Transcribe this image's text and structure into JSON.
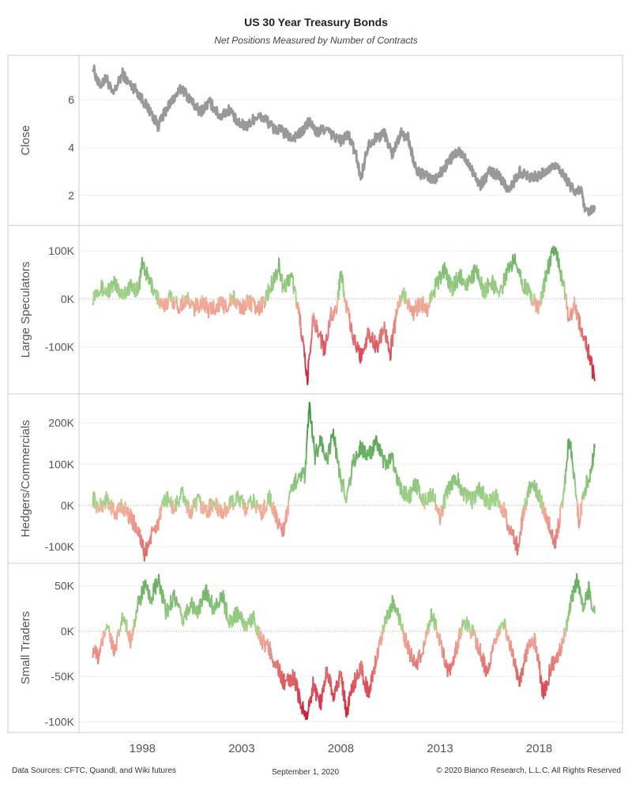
{
  "header": {
    "title": "US 30 Year Treasury Bonds",
    "subtitle": "Net Positions Measured by Number of Contracts"
  },
  "footer": {
    "sources": "Data Sources: CFTC, Quandl, and Wiki futures",
    "date": "September 1, 2020",
    "copyright": "© 2020 Bianco Research, L.L.C. All Rights Reserved"
  },
  "chart_data": {
    "type": "line",
    "x_axis": {
      "ticks": [
        "1998",
        "2003",
        "2008",
        "2013",
        "2018"
      ],
      "tick_values": [
        1998,
        2003,
        2008,
        2013,
        2018
      ],
      "range": [
        1994.8,
        2022.2
      ]
    },
    "colors": {
      "close": "#999999",
      "positive_dark": "#2e8b3a",
      "positive_light": "#a8d58f",
      "negative_light": "#f4b49e",
      "negative_dark": "#c8102e"
    },
    "panels": [
      {
        "ylabel": "Close",
        "ylim": [
          1,
          7.6
        ],
        "yticks": [
          2,
          4,
          6
        ],
        "ytick_labels": [
          "2",
          "4",
          "6"
        ],
        "color_mode": "gray",
        "points": [
          [
            1995.5,
            7.4
          ],
          [
            1995.8,
            6.6
          ],
          [
            1996.2,
            6.9
          ],
          [
            1996.5,
            6.2
          ],
          [
            1997.0,
            7.1
          ],
          [
            1997.3,
            6.7
          ],
          [
            1997.7,
            6.4
          ],
          [
            1998.0,
            6.0
          ],
          [
            1998.4,
            5.5
          ],
          [
            1998.8,
            4.9
          ],
          [
            1999.2,
            5.6
          ],
          [
            1999.6,
            6.1
          ],
          [
            2000.0,
            6.5
          ],
          [
            2000.4,
            6.0
          ],
          [
            2000.9,
            5.5
          ],
          [
            2001.4,
            5.9
          ],
          [
            2001.9,
            5.3
          ],
          [
            2002.4,
            5.6
          ],
          [
            2002.8,
            5.0
          ],
          [
            2003.3,
            4.9
          ],
          [
            2003.7,
            5.3
          ],
          [
            2004.2,
            5.2
          ],
          [
            2004.6,
            4.8
          ],
          [
            2005.0,
            4.7
          ],
          [
            2005.5,
            4.4
          ],
          [
            2006.0,
            4.6
          ],
          [
            2006.4,
            5.1
          ],
          [
            2006.8,
            4.6
          ],
          [
            2007.2,
            4.8
          ],
          [
            2007.6,
            4.5
          ],
          [
            2008.0,
            4.3
          ],
          [
            2008.4,
            4.5
          ],
          [
            2008.8,
            3.6
          ],
          [
            2009.0,
            2.7
          ],
          [
            2009.4,
            4.2
          ],
          [
            2009.8,
            4.4
          ],
          [
            2010.2,
            4.6
          ],
          [
            2010.6,
            3.7
          ],
          [
            2011.0,
            4.6
          ],
          [
            2011.4,
            4.4
          ],
          [
            2011.8,
            3.0
          ],
          [
            2012.3,
            2.8
          ],
          [
            2012.7,
            2.6
          ],
          [
            2013.1,
            3.0
          ],
          [
            2013.6,
            3.6
          ],
          [
            2014.0,
            3.8
          ],
          [
            2014.5,
            3.3
          ],
          [
            2015.0,
            2.4
          ],
          [
            2015.5,
            3.0
          ],
          [
            2016.0,
            2.8
          ],
          [
            2016.5,
            2.2
          ],
          [
            2017.0,
            3.0
          ],
          [
            2017.5,
            2.8
          ],
          [
            2018.0,
            2.8
          ],
          [
            2018.5,
            3.1
          ],
          [
            2018.9,
            3.3
          ],
          [
            2019.4,
            2.6
          ],
          [
            2019.8,
            2.1
          ],
          [
            2020.1,
            2.3
          ],
          [
            2020.3,
            1.3
          ],
          [
            2020.6,
            1.3
          ],
          [
            2020.8,
            1.4
          ]
        ]
      },
      {
        "ylabel": "Large Speculators",
        "ylim": [
          -185000,
          140000
        ],
        "yticks": [
          100000,
          0,
          -100000
        ],
        "ytick_labels": [
          "100K",
          "0K",
          "-100K"
        ],
        "color_mode": "diverging",
        "points": [
          [
            1995.5,
            5000
          ],
          [
            1995.8,
            25000
          ],
          [
            1996.2,
            15000
          ],
          [
            1996.6,
            30000
          ],
          [
            1997.0,
            10000
          ],
          [
            1997.4,
            25000
          ],
          [
            1997.8,
            20000
          ],
          [
            1998.0,
            75000
          ],
          [
            1998.3,
            40000
          ],
          [
            1998.7,
            10000
          ],
          [
            1999.0,
            -20000
          ],
          [
            1999.4,
            5000
          ],
          [
            1999.8,
            -15000
          ],
          [
            2000.2,
            0
          ],
          [
            2000.6,
            -20000
          ],
          [
            2001.0,
            -5000
          ],
          [
            2001.4,
            -25000
          ],
          [
            2001.8,
            -10000
          ],
          [
            2002.2,
            -15000
          ],
          [
            2002.6,
            0
          ],
          [
            2003.0,
            -20000
          ],
          [
            2003.4,
            -5000
          ],
          [
            2003.8,
            -25000
          ],
          [
            2004.2,
            0
          ],
          [
            2004.6,
            40000
          ],
          [
            2004.9,
            70000
          ],
          [
            2005.1,
            20000
          ],
          [
            2005.5,
            50000
          ],
          [
            2005.8,
            -10000
          ],
          [
            2006.0,
            -60000
          ],
          [
            2006.3,
            -175000
          ],
          [
            2006.6,
            -40000
          ],
          [
            2006.9,
            -70000
          ],
          [
            2007.2,
            -110000
          ],
          [
            2007.5,
            -30000
          ],
          [
            2007.8,
            -20000
          ],
          [
            2008.0,
            60000
          ],
          [
            2008.3,
            -20000
          ],
          [
            2008.6,
            -80000
          ],
          [
            2009.0,
            -120000
          ],
          [
            2009.4,
            -70000
          ],
          [
            2009.8,
            -100000
          ],
          [
            2010.2,
            -60000
          ],
          [
            2010.5,
            -110000
          ],
          [
            2010.9,
            -10000
          ],
          [
            2011.2,
            10000
          ],
          [
            2011.6,
            -30000
          ],
          [
            2012.0,
            -10000
          ],
          [
            2012.4,
            -20000
          ],
          [
            2012.8,
            30000
          ],
          [
            2013.2,
            60000
          ],
          [
            2013.6,
            20000
          ],
          [
            2014.0,
            50000
          ],
          [
            2014.4,
            30000
          ],
          [
            2014.8,
            60000
          ],
          [
            2015.2,
            15000
          ],
          [
            2015.6,
            35000
          ],
          [
            2016.0,
            10000
          ],
          [
            2016.4,
            55000
          ],
          [
            2016.8,
            90000
          ],
          [
            2017.2,
            30000
          ],
          [
            2017.6,
            5000
          ],
          [
            2018.0,
            -20000
          ],
          [
            2018.4,
            60000
          ],
          [
            2018.8,
            110000
          ],
          [
            2019.2,
            30000
          ],
          [
            2019.5,
            -40000
          ],
          [
            2019.8,
            -10000
          ],
          [
            2020.0,
            -50000
          ],
          [
            2020.3,
            -80000
          ],
          [
            2020.6,
            -130000
          ],
          [
            2020.8,
            -170000
          ]
        ]
      },
      {
        "ylabel": "Hedgers/Commercials",
        "ylim": [
          -125000,
          255000
        ],
        "yticks": [
          200000,
          100000,
          0,
          -100000
        ],
        "ytick_labels": [
          "200K",
          "100K",
          "0K",
          "-100K"
        ],
        "color_mode": "diverging",
        "points": [
          [
            1995.5,
            20000
          ],
          [
            1995.8,
            -10000
          ],
          [
            1996.2,
            15000
          ],
          [
            1996.6,
            -20000
          ],
          [
            1997.0,
            0
          ],
          [
            1997.4,
            -30000
          ],
          [
            1997.8,
            -60000
          ],
          [
            1998.1,
            -120000
          ],
          [
            1998.4,
            -80000
          ],
          [
            1998.8,
            -40000
          ],
          [
            1999.2,
            20000
          ],
          [
            1999.6,
            -10000
          ],
          [
            2000.0,
            30000
          ],
          [
            2000.4,
            -20000
          ],
          [
            2000.8,
            10000
          ],
          [
            2001.2,
            -15000
          ],
          [
            2001.6,
            5000
          ],
          [
            2002.0,
            -20000
          ],
          [
            2002.4,
            0
          ],
          [
            2002.8,
            20000
          ],
          [
            2003.2,
            -10000
          ],
          [
            2003.6,
            10000
          ],
          [
            2004.0,
            -20000
          ],
          [
            2004.4,
            20000
          ],
          [
            2004.8,
            -40000
          ],
          [
            2005.1,
            -60000
          ],
          [
            2005.5,
            30000
          ],
          [
            2005.9,
            80000
          ],
          [
            2006.2,
            70000
          ],
          [
            2006.4,
            240000
          ],
          [
            2006.7,
            120000
          ],
          [
            2007.0,
            160000
          ],
          [
            2007.3,
            100000
          ],
          [
            2007.6,
            180000
          ],
          [
            2008.0,
            60000
          ],
          [
            2008.3,
            20000
          ],
          [
            2008.6,
            100000
          ],
          [
            2009.0,
            140000
          ],
          [
            2009.4,
            120000
          ],
          [
            2009.8,
            150000
          ],
          [
            2010.2,
            100000
          ],
          [
            2010.6,
            110000
          ],
          [
            2011.0,
            40000
          ],
          [
            2011.4,
            20000
          ],
          [
            2011.8,
            50000
          ],
          [
            2012.2,
            10000
          ],
          [
            2012.6,
            30000
          ],
          [
            2013.0,
            -30000
          ],
          [
            2013.4,
            40000
          ],
          [
            2013.8,
            70000
          ],
          [
            2014.2,
            30000
          ],
          [
            2014.6,
            10000
          ],
          [
            2015.0,
            40000
          ],
          [
            2015.4,
            5000
          ],
          [
            2015.8,
            20000
          ],
          [
            2016.2,
            -10000
          ],
          [
            2016.6,
            -70000
          ],
          [
            2016.9,
            -100000
          ],
          [
            2017.2,
            -20000
          ],
          [
            2017.6,
            60000
          ],
          [
            2018.0,
            20000
          ],
          [
            2018.4,
            -30000
          ],
          [
            2018.8,
            -90000
          ],
          [
            2019.2,
            10000
          ],
          [
            2019.5,
            170000
          ],
          [
            2019.8,
            60000
          ],
          [
            2020.0,
            -40000
          ],
          [
            2020.3,
            40000
          ],
          [
            2020.6,
            80000
          ],
          [
            2020.8,
            140000
          ]
        ]
      },
      {
        "ylabel": "Small Traders",
        "ylim": [
          -105000,
          68000
        ],
        "yticks": [
          50000,
          0,
          -50000,
          -100000
        ],
        "ytick_labels": [
          "50K",
          "0K",
          "-50K",
          "-100K"
        ],
        "color_mode": "diverging",
        "points": [
          [
            1995.5,
            -20000
          ],
          [
            1995.8,
            -30000
          ],
          [
            1996.2,
            10000
          ],
          [
            1996.6,
            -25000
          ],
          [
            1997.0,
            15000
          ],
          [
            1997.4,
            -10000
          ],
          [
            1997.8,
            30000
          ],
          [
            1998.1,
            50000
          ],
          [
            1998.4,
            35000
          ],
          [
            1998.8,
            55000
          ],
          [
            1999.2,
            20000
          ],
          [
            1999.6,
            40000
          ],
          [
            2000.0,
            10000
          ],
          [
            2000.4,
            30000
          ],
          [
            2000.8,
            20000
          ],
          [
            2001.2,
            45000
          ],
          [
            2001.6,
            25000
          ],
          [
            2002.0,
            40000
          ],
          [
            2002.4,
            10000
          ],
          [
            2002.8,
            20000
          ],
          [
            2003.2,
            5000
          ],
          [
            2003.6,
            15000
          ],
          [
            2004.0,
            -10000
          ],
          [
            2004.4,
            -20000
          ],
          [
            2004.8,
            -40000
          ],
          [
            2005.2,
            -60000
          ],
          [
            2005.6,
            -50000
          ],
          [
            2006.0,
            -80000
          ],
          [
            2006.3,
            -95000
          ],
          [
            2006.6,
            -60000
          ],
          [
            2007.0,
            -80000
          ],
          [
            2007.3,
            -40000
          ],
          [
            2007.6,
            -70000
          ],
          [
            2008.0,
            -50000
          ],
          [
            2008.3,
            -90000
          ],
          [
            2008.6,
            -60000
          ],
          [
            2009.0,
            -40000
          ],
          [
            2009.4,
            -70000
          ],
          [
            2009.8,
            -30000
          ],
          [
            2010.2,
            10000
          ],
          [
            2010.6,
            30000
          ],
          [
            2011.0,
            10000
          ],
          [
            2011.4,
            -20000
          ],
          [
            2011.8,
            -40000
          ],
          [
            2012.2,
            -15000
          ],
          [
            2012.6,
            20000
          ],
          [
            2013.0,
            -10000
          ],
          [
            2013.4,
            -50000
          ],
          [
            2013.8,
            -20000
          ],
          [
            2014.2,
            10000
          ],
          [
            2014.6,
            0
          ],
          [
            2015.0,
            -20000
          ],
          [
            2015.4,
            -50000
          ],
          [
            2015.8,
            -10000
          ],
          [
            2016.2,
            10000
          ],
          [
            2016.6,
            -20000
          ],
          [
            2017.0,
            -60000
          ],
          [
            2017.4,
            -20000
          ],
          [
            2017.8,
            -10000
          ],
          [
            2018.2,
            -70000
          ],
          [
            2018.6,
            -40000
          ],
          [
            2018.9,
            -30000
          ],
          [
            2019.2,
            -10000
          ],
          [
            2019.6,
            30000
          ],
          [
            2019.9,
            55000
          ],
          [
            2020.2,
            30000
          ],
          [
            2020.5,
            45000
          ],
          [
            2020.8,
            20000
          ]
        ]
      }
    ]
  }
}
